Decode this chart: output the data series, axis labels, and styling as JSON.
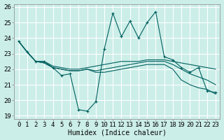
{
  "xlabel": "Humidex (Indice chaleur)",
  "bg_color": "#cceee8",
  "grid_color": "#ffffff",
  "line_color": "#006060",
  "xlim": [
    -0.5,
    23.5
  ],
  "ylim": [
    18.8,
    26.2
  ],
  "xticks": [
    0,
    1,
    2,
    3,
    4,
    5,
    6,
    7,
    8,
    9,
    10,
    11,
    12,
    13,
    14,
    15,
    16,
    17,
    18,
    19,
    20,
    21,
    22,
    23
  ],
  "yticks": [
    19,
    20,
    21,
    22,
    23,
    24,
    25,
    26
  ],
  "series": [
    [
      23.8,
      23.1,
      22.5,
      22.5,
      22.1,
      21.6,
      21.7,
      19.4,
      19.3,
      19.9,
      23.3,
      25.6,
      24.1,
      25.1,
      24.0,
      25.0,
      25.7,
      22.8,
      22.6,
      22.1,
      21.8,
      22.1,
      20.6,
      20.5
    ],
    [
      23.8,
      23.1,
      22.5,
      22.5,
      22.2,
      22.1,
      22.0,
      22.0,
      22.1,
      22.2,
      22.3,
      22.4,
      22.5,
      22.5,
      22.5,
      22.6,
      22.6,
      22.6,
      22.5,
      22.4,
      22.3,
      22.2,
      22.1,
      22.0
    ],
    [
      23.8,
      23.1,
      22.5,
      22.4,
      22.1,
      22.0,
      21.9,
      21.9,
      22.0,
      21.9,
      22.0,
      22.1,
      22.2,
      22.3,
      22.4,
      22.5,
      22.5,
      22.5,
      22.3,
      22.0,
      21.7,
      21.5,
      21.3,
      21.0
    ],
    [
      23.8,
      23.1,
      22.5,
      22.4,
      22.1,
      22.0,
      21.9,
      21.9,
      22.0,
      21.8,
      21.8,
      21.9,
      22.0,
      22.1,
      22.2,
      22.3,
      22.3,
      22.3,
      22.0,
      21.3,
      21.0,
      20.8,
      20.7,
      20.4
    ]
  ],
  "fontsize_xlabel": 7,
  "fontsize_ticks": 6.5
}
